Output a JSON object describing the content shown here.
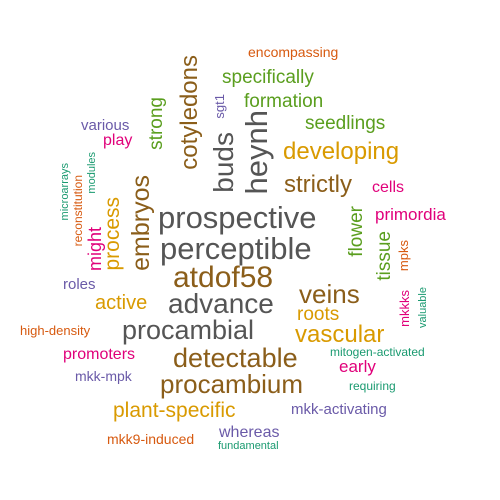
{
  "colors": {
    "gray": "#555555",
    "brown": "#8b5e1a",
    "gold": "#d99a00",
    "green": "#5a9e1e",
    "pink": "#e0007a",
    "purple": "#6a5aa8",
    "orange": "#d75a10",
    "teal": "#1a9a70"
  },
  "words": [
    {
      "text": "prospective"
    },
    {
      "text": "perceptible"
    },
    {
      "text": "atdof58"
    },
    {
      "text": "advance"
    },
    {
      "text": "procambial"
    },
    {
      "text": "heynh"
    },
    {
      "text": "buds"
    },
    {
      "text": "cotyledons"
    },
    {
      "text": "detectable"
    },
    {
      "text": "procambium"
    },
    {
      "text": "embryos"
    },
    {
      "text": "strictly"
    },
    {
      "text": "veins"
    },
    {
      "text": "developing"
    },
    {
      "text": "vascular"
    },
    {
      "text": "plant-specific"
    },
    {
      "text": "process"
    },
    {
      "text": "active"
    },
    {
      "text": "formation"
    },
    {
      "text": "specifically"
    },
    {
      "text": "seedlings"
    },
    {
      "text": "roots"
    },
    {
      "text": "flower"
    },
    {
      "text": "tissue"
    },
    {
      "text": "strong"
    },
    {
      "text": "primordia"
    },
    {
      "text": "might"
    },
    {
      "text": "cells"
    },
    {
      "text": "early"
    },
    {
      "text": "promoters"
    },
    {
      "text": "play"
    },
    {
      "text": "whereas"
    },
    {
      "text": "encompassing"
    },
    {
      "text": "various"
    },
    {
      "text": "roles"
    },
    {
      "text": "mkk-activating"
    },
    {
      "text": "mkk9-induced"
    },
    {
      "text": "mkk-mpk"
    },
    {
      "text": "mitogen-activated"
    },
    {
      "text": "high-density"
    },
    {
      "text": "requiring"
    },
    {
      "text": "fundamental"
    },
    {
      "text": "valuable"
    },
    {
      "text": "mpks"
    },
    {
      "text": "mkkks"
    },
    {
      "text": "sgt1"
    },
    {
      "text": "reconstitution"
    },
    {
      "text": "modules"
    },
    {
      "text": "microarrays"
    }
  ]
}
